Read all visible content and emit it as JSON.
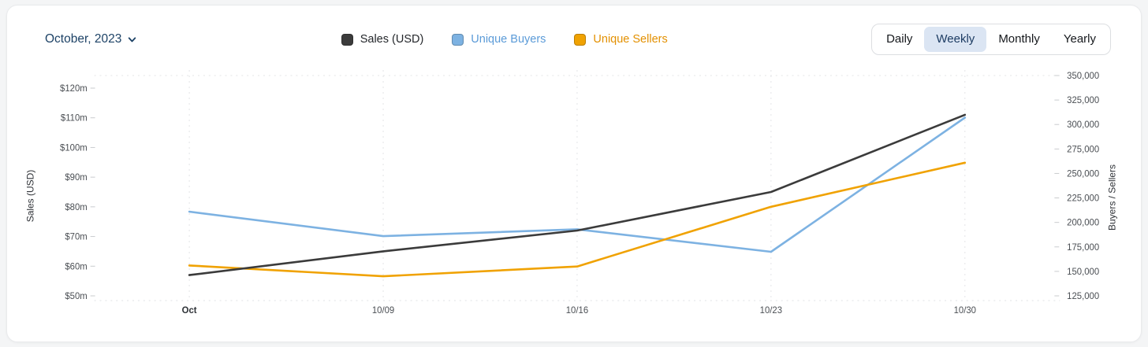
{
  "header": {
    "period": {
      "label": "October, 2023"
    },
    "tabs": [
      {
        "label": "Daily"
      },
      {
        "label": "Weekly"
      },
      {
        "label": "Monthly"
      },
      {
        "label": "Yearly"
      }
    ],
    "active_tab": "Weekly"
  },
  "legend": {
    "items": [
      {
        "label": "Sales (USD)",
        "color": "#3b3b3b",
        "text_color": "#24272b"
      },
      {
        "label": "Unique Buyers",
        "color": "#7db2e2",
        "text_color": "#5b9bd8"
      },
      {
        "label": "Unique Sellers",
        "color": "#f0a202",
        "text_color": "#e39000"
      }
    ]
  },
  "chart_data": {
    "type": "line",
    "title": "",
    "x": [
      "Oct",
      "10/09",
      "10/16",
      "10/23",
      "10/30"
    ],
    "left_axis": {
      "title": "Sales (USD)",
      "unit": "million USD",
      "tick_values": [
        50,
        60,
        70,
        80,
        90,
        100,
        110,
        120
      ],
      "tick_labels": [
        "$50m",
        "$60m",
        "$70m",
        "$80m",
        "$90m",
        "$100m",
        "$110m",
        "$120m"
      ]
    },
    "right_axis": {
      "title": "Buyers / Sellers",
      "tick_values": [
        125000,
        150000,
        175000,
        200000,
        225000,
        250000,
        275000,
        300000,
        325000,
        350000
      ],
      "tick_labels": [
        "125,000",
        "150,000",
        "175,000",
        "200,000",
        "225,000",
        "250,000",
        "275,000",
        "300,000",
        "325,000",
        "350,000"
      ]
    },
    "series": [
      {
        "name": "Sales (USD)",
        "axis": "left",
        "color": "#3b3b3b",
        "values": [
          57,
          65,
          72,
          85,
          111
        ]
      },
      {
        "name": "Unique Buyers",
        "axis": "right",
        "color": "#7db2e2",
        "values": [
          211000,
          186000,
          193000,
          170000,
          307000
        ]
      },
      {
        "name": "Unique Sellers",
        "axis": "right",
        "color": "#f0a202",
        "values": [
          156000,
          145000,
          155000,
          216000,
          261000
        ]
      }
    ],
    "grid": {
      "vertical": "dashed",
      "horizontal": "dashed-top-bottom"
    },
    "legend_position": "top-center"
  }
}
